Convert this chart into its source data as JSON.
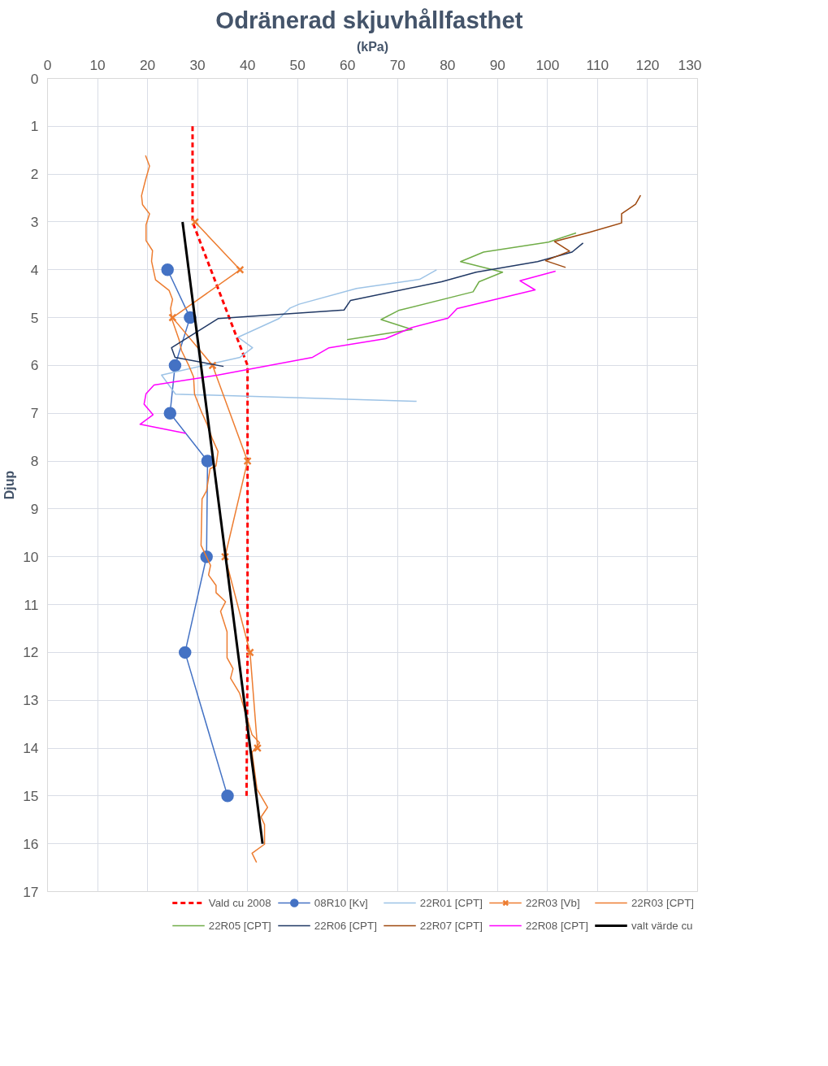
{
  "chart_data": {
    "type": "line",
    "title": "Odränerad  skjuvhållfasthet",
    "xlabel": "(kPa)",
    "ylabel": "Djup",
    "xlim": [
      0,
      130
    ],
    "xticks": [
      0,
      10,
      20,
      30,
      40,
      50,
      60,
      70,
      80,
      90,
      100,
      110,
      120,
      130
    ],
    "ylim": [
      17,
      0
    ],
    "yticks": [
      0,
      1,
      2,
      3,
      4,
      5,
      6,
      7,
      8,
      9,
      10,
      11,
      12,
      13,
      14,
      15,
      16,
      17
    ],
    "grid": true,
    "legend": "bottom",
    "marker": "none",
    "series": [
      {
        "name": "Vald cu 2008",
        "color": "#ff0000",
        "line_style": "dashed",
        "x": [
          29,
          29,
          40,
          40,
          39.8
        ],
        "values": [
          1,
          3,
          6,
          12,
          15
        ]
      },
      {
        "name": "08R10 [Kv]",
        "color": "#4472c4",
        "marker": "circle",
        "x": [
          24,
          28.5,
          25.5,
          24.5,
          32,
          31.8,
          27.5,
          36
        ],
        "values": [
          4,
          5,
          6,
          7,
          8,
          10,
          12,
          15
        ]
      },
      {
        "name": "22R01 [CPT]",
        "color": "#9dc3e6",
        "x": [
          77.8,
          74.4,
          61.8,
          50.3,
          48.5,
          46.3,
          38.1,
          41,
          38.5,
          22.8,
          25.6,
          73.8
        ],
        "values": [
          4.0,
          4.2,
          4.39,
          4.72,
          4.8,
          5.02,
          5.41,
          5.63,
          5.83,
          6.2,
          6.6,
          6.75
        ]
      },
      {
        "name": "22R03 [Vb]",
        "color": "#ed7d31",
        "marker": "cross",
        "x": [
          29.5,
          38.5,
          25,
          33,
          40,
          35.5,
          40.5,
          42
        ],
        "values": [
          3,
          4,
          5,
          6,
          8,
          10,
          12,
          14
        ]
      },
      {
        "name": "22R03 [CPT]",
        "color": "#ed7d31",
        "x": [
          19.6,
          20.4,
          19.6,
          18.8,
          19.0,
          20.4,
          19.7,
          19.7,
          21.0,
          20.8,
          21.6,
          24.3,
          25.0,
          24.6,
          24.9,
          26.3,
          26.8,
          28.2,
          29.2,
          29.4,
          30.7,
          31.9,
          32.9,
          34.1,
          33.7,
          32.5,
          31.8,
          30.9,
          30.7,
          32.6,
          32.2,
          33.7,
          33.7,
          35.6,
          34.6,
          35.9,
          35.9,
          37.1,
          36.6,
          38.4,
          40.9,
          42.4,
          40.9,
          41.9,
          44.0,
          42.7,
          43.4,
          43.4,
          40.9,
          41.8
        ],
        "values": [
          1.61,
          1.83,
          2.12,
          2.45,
          2.64,
          2.83,
          3.06,
          3.39,
          3.6,
          3.82,
          4.21,
          4.43,
          4.62,
          4.81,
          5.04,
          5.46,
          5.69,
          5.99,
          6.24,
          6.6,
          6.95,
          7.23,
          7.52,
          7.8,
          8.1,
          8.16,
          8.62,
          8.79,
          9.76,
          10.18,
          10.38,
          10.6,
          10.75,
          10.94,
          11.14,
          11.57,
          12.11,
          12.34,
          12.54,
          12.85,
          13.72,
          13.89,
          14.09,
          14.86,
          15.24,
          15.44,
          15.6,
          16.01,
          16.2,
          16.39
        ]
      },
      {
        "name": "22R05 [CPT]",
        "color": "#70ad47",
        "x": [
          105.7,
          100.2,
          87.2,
          82.6,
          91.0,
          86.3,
          85.1,
          70.2,
          66.7,
          72.9,
          59.9
        ],
        "values": [
          3.23,
          3.42,
          3.63,
          3.83,
          4.05,
          4.25,
          4.46,
          4.85,
          5.04,
          5.25,
          5.46
        ]
      },
      {
        "name": "22R06 [CPT]",
        "color": "#203864",
        "x": [
          107.1,
          104.9,
          98.0,
          85.7,
          78.8,
          60.6,
          59.3,
          34.1,
          24.8,
          25.5,
          35.2
        ],
        "values": [
          3.44,
          3.63,
          3.83,
          4.05,
          4.25,
          4.64,
          4.84,
          5.02,
          5.63,
          5.83,
          6.02
        ]
      },
      {
        "name": "22R07 [CPT]",
        "color": "#9e480e",
        "x": [
          118.6,
          117.6,
          114.8,
          114.8,
          108.2,
          101.4,
          104.4,
          99.6,
          103.6
        ],
        "values": [
          2.44,
          2.63,
          2.83,
          3.02,
          3.22,
          3.41,
          3.61,
          3.81,
          3.95
        ]
      },
      {
        "name": "22R08 [CPT]",
        "color": "#ff00ff",
        "x": [
          101.6,
          94.5,
          97.5,
          81.9,
          80.1,
          72.8,
          67.6,
          56.3,
          53.0,
          34.1,
          21.3,
          19.7,
          19.3,
          21.1,
          18.5,
          27.7
        ],
        "values": [
          4.03,
          4.23,
          4.42,
          4.81,
          5.01,
          5.21,
          5.44,
          5.63,
          5.83,
          6.2,
          6.41,
          6.59,
          6.81,
          7.03,
          7.23,
          7.42
        ]
      },
      {
        "name": "valt värde cu",
        "color": "#000000",
        "line_style": "solid",
        "x": [
          27,
          43
        ],
        "values": [
          3,
          16
        ]
      }
    ]
  }
}
